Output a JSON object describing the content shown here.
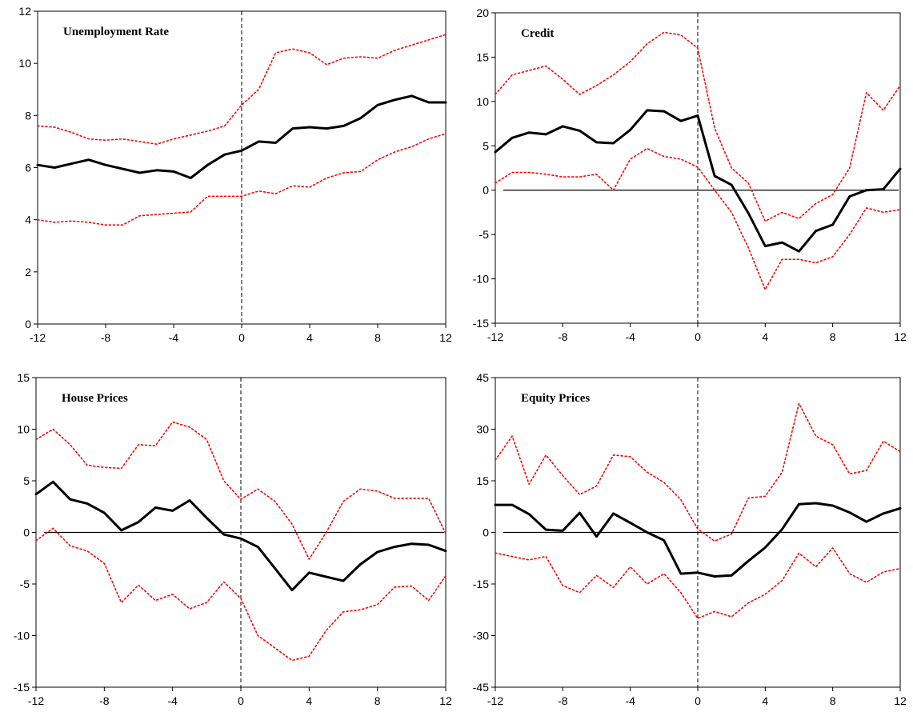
{
  "chart_data": [
    {
      "type": "line",
      "title": "Unemployment Rate",
      "xlim": [
        -12,
        12
      ],
      "ylim": [
        0,
        12
      ],
      "x_ticks": [
        -12,
        -8,
        -4,
        0,
        4,
        8,
        12
      ],
      "y_ticks": [
        0,
        2,
        4,
        6,
        8,
        10,
        12
      ],
      "event_line_x": 0,
      "zero_line": false,
      "x": [
        -12,
        -11,
        -10,
        -9,
        -8,
        -7,
        -6,
        -5,
        -4,
        -3,
        -2,
        -1,
        0,
        1,
        2,
        3,
        4,
        5,
        6,
        7,
        8,
        9,
        10,
        11,
        12
      ],
      "series": [
        {
          "role": "estimate",
          "color": "#000000",
          "style": "solid",
          "values": [
            6.1,
            6.0,
            6.15,
            6.3,
            6.1,
            5.95,
            5.8,
            5.9,
            5.85,
            5.6,
            6.1,
            6.5,
            6.65,
            7.0,
            6.95,
            7.5,
            7.55,
            7.5,
            7.6,
            7.9,
            8.4,
            8.6,
            8.75,
            8.5,
            8.5
          ]
        },
        {
          "role": "upper-band",
          "color": "#ff0000",
          "style": "dotted",
          "values": [
            7.6,
            7.55,
            7.35,
            7.1,
            7.05,
            7.1,
            7.0,
            6.9,
            7.1,
            7.25,
            7.4,
            7.6,
            8.4,
            9.0,
            10.4,
            10.55,
            10.4,
            9.95,
            10.2,
            10.25,
            10.2,
            10.5,
            10.7,
            10.9,
            11.1
          ]
        },
        {
          "role": "lower-band",
          "color": "#ff0000",
          "style": "dotted",
          "values": [
            4.0,
            3.9,
            3.95,
            3.9,
            3.8,
            3.8,
            4.15,
            4.2,
            4.25,
            4.3,
            4.9,
            4.9,
            4.9,
            5.1,
            5.0,
            5.3,
            5.25,
            5.6,
            5.8,
            5.85,
            6.3,
            6.6,
            6.8,
            7.1,
            7.3
          ]
        }
      ]
    },
    {
      "type": "line",
      "title": "Credit",
      "xlim": [
        -12,
        12
      ],
      "ylim": [
        -15,
        20
      ],
      "x_ticks": [
        -12,
        -8,
        -4,
        0,
        4,
        8,
        12
      ],
      "y_ticks": [
        -15,
        -10,
        -5,
        0,
        5,
        10,
        15,
        20
      ],
      "event_line_x": 0,
      "zero_line": true,
      "x": [
        -12,
        -11,
        -10,
        -9,
        -8,
        -7,
        -6,
        -5,
        -4,
        -3,
        -2,
        -1,
        0,
        1,
        2,
        3,
        4,
        5,
        6,
        7,
        8,
        9,
        10,
        11,
        12
      ],
      "series": [
        {
          "role": "estimate",
          "color": "#000000",
          "style": "solid",
          "values": [
            4.3,
            5.9,
            6.5,
            6.3,
            7.2,
            6.7,
            5.4,
            5.3,
            6.8,
            9.0,
            8.9,
            7.8,
            8.4,
            1.6,
            0.6,
            -2.6,
            -6.3,
            -5.9,
            -6.9,
            -4.6,
            -3.9,
            -0.7,
            0.0,
            0.1,
            2.4
          ]
        },
        {
          "role": "upper-band",
          "color": "#ff0000",
          "style": "dotted",
          "values": [
            10.8,
            13.0,
            13.5,
            14.0,
            12.5,
            10.8,
            11.8,
            13.0,
            14.5,
            16.5,
            17.8,
            17.5,
            16.0,
            7.0,
            2.5,
            0.8,
            -3.5,
            -2.5,
            -3.2,
            -1.5,
            -0.5,
            2.5,
            11.0,
            9.0,
            11.8
          ]
        },
        {
          "role": "lower-band",
          "color": "#ff0000",
          "style": "dotted",
          "values": [
            0.8,
            2.0,
            2.0,
            1.8,
            1.5,
            1.5,
            1.8,
            0.0,
            3.5,
            4.7,
            3.8,
            3.5,
            2.6,
            0.0,
            -2.5,
            -6.5,
            -11.2,
            -7.8,
            -7.8,
            -8.2,
            -7.5,
            -5.0,
            -2.0,
            -2.5,
            -2.2
          ]
        }
      ]
    },
    {
      "type": "line",
      "title": "House Prices",
      "xlim": [
        -12,
        12
      ],
      "ylim": [
        -15,
        15
      ],
      "x_ticks": [
        -12,
        -8,
        -4,
        0,
        4,
        8,
        12
      ],
      "y_ticks": [
        -15,
        -10,
        -5,
        0,
        5,
        10,
        15
      ],
      "event_line_x": 0,
      "zero_line": true,
      "x": [
        -12,
        -11,
        -10,
        -9,
        -8,
        -7,
        -6,
        -5,
        -4,
        -3,
        -2,
        -1,
        0,
        1,
        2,
        3,
        4,
        5,
        6,
        7,
        8,
        9,
        10,
        11,
        12
      ],
      "series": [
        {
          "role": "estimate",
          "color": "#000000",
          "style": "solid",
          "values": [
            3.7,
            4.9,
            3.2,
            2.8,
            1.9,
            0.2,
            1.0,
            2.4,
            2.1,
            3.1,
            1.4,
            -0.2,
            -0.6,
            -1.4,
            -3.5,
            -5.6,
            -3.9,
            -4.3,
            -4.7,
            -3.1,
            -1.9,
            -1.4,
            -1.1,
            -1.2,
            -1.8
          ]
        },
        {
          "role": "upper-band",
          "color": "#ff0000",
          "style": "dotted",
          "values": [
            9.0,
            10.0,
            8.5,
            6.5,
            6.3,
            6.2,
            8.5,
            8.4,
            10.7,
            10.2,
            9.0,
            5.0,
            3.2,
            4.2,
            3.0,
            0.8,
            -2.6,
            0.0,
            3.0,
            4.2,
            4.0,
            3.3,
            3.3,
            3.3,
            -0.1
          ]
        },
        {
          "role": "lower-band",
          "color": "#ff0000",
          "style": "dotted",
          "values": [
            -0.8,
            0.4,
            -1.3,
            -1.8,
            -3.0,
            -6.8,
            -5.1,
            -6.6,
            -6.0,
            -7.4,
            -6.8,
            -4.8,
            -6.4,
            -10.0,
            -11.2,
            -12.4,
            -12.0,
            -9.5,
            -7.7,
            -7.5,
            -7.0,
            -5.3,
            -5.2,
            -6.6,
            -4.2
          ]
        }
      ]
    },
    {
      "type": "line",
      "title": "Equity Prices",
      "xlim": [
        -12,
        12
      ],
      "ylim": [
        -45,
        45
      ],
      "x_ticks": [
        -12,
        -8,
        -4,
        0,
        4,
        8,
        12
      ],
      "y_ticks": [
        -45,
        -30,
        -15,
        0,
        15,
        30,
        45
      ],
      "event_line_x": 0,
      "zero_line": true,
      "x": [
        -12,
        -11,
        -10,
        -9,
        -8,
        -7,
        -6,
        -5,
        -4,
        -3,
        -2,
        -1,
        0,
        1,
        2,
        3,
        4,
        5,
        6,
        7,
        8,
        9,
        10,
        11,
        12
      ],
      "series": [
        {
          "role": "estimate",
          "color": "#000000",
          "style": "solid",
          "values": [
            8.0,
            8.0,
            5.3,
            0.8,
            0.5,
            5.7,
            -1.2,
            5.5,
            2.8,
            0.0,
            -2.3,
            -12.0,
            -11.7,
            -12.8,
            -12.5,
            -8.3,
            -4.4,
            0.9,
            8.2,
            8.5,
            7.8,
            5.8,
            3.1,
            5.5,
            7.0
          ]
        },
        {
          "role": "upper-band",
          "color": "#ff0000",
          "style": "dotted",
          "values": [
            21.0,
            28.0,
            14.0,
            22.5,
            16.5,
            11.0,
            13.5,
            22.5,
            22.0,
            17.5,
            14.5,
            9.5,
            1.0,
            -2.5,
            -0.5,
            10.0,
            10.5,
            17.5,
            37.5,
            28.0,
            25.5,
            17.0,
            18.0,
            26.5,
            23.5
          ]
        },
        {
          "role": "lower-band",
          "color": "#ff0000",
          "style": "dotted",
          "values": [
            -6.0,
            -7.0,
            -8.0,
            -7.0,
            -15.5,
            -17.5,
            -12.5,
            -16.0,
            -10.0,
            -15.0,
            -12.0,
            -17.5,
            -25.0,
            -23.0,
            -24.5,
            -20.5,
            -18.0,
            -14.0,
            -6.0,
            -10.0,
            -4.5,
            -12.0,
            -14.5,
            -11.5,
            -10.5
          ]
        }
      ]
    }
  ]
}
